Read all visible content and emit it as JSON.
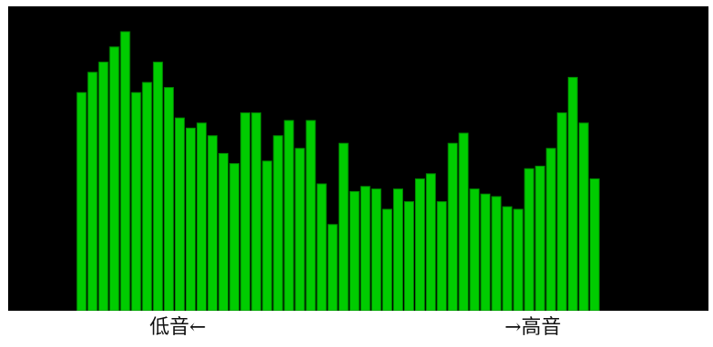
{
  "chart_data": {
    "type": "bar",
    "values": [
      86,
      94,
      98,
      104,
      110,
      86,
      90,
      98,
      88,
      76,
      72,
      74,
      69,
      62,
      58,
      78,
      78,
      59,
      69,
      75,
      64,
      75,
      50,
      34,
      66,
      47,
      49,
      48,
      40,
      48,
      43,
      52,
      54,
      43,
      66,
      70,
      48,
      46,
      45,
      41,
      40,
      56,
      57,
      64,
      78,
      92,
      74,
      52
    ],
    "ylim": [
      0,
      120
    ],
    "colors": {
      "bar": "#00cc00",
      "bar_edge": "#008a00",
      "background": "#000000"
    },
    "labels": {
      "low": "低音←",
      "high": "→高音"
    }
  }
}
